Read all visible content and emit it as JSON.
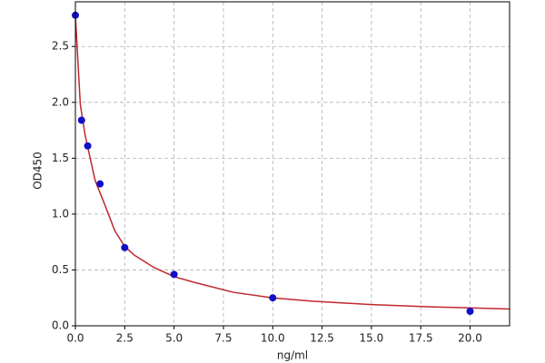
{
  "chart_data": {
    "type": "scatter",
    "x_label": "ng/ml",
    "y_label": "OD450",
    "xlim": [
      0,
      22
    ],
    "ylim": [
      0,
      2.9
    ],
    "xticks": [
      {
        "value": 0,
        "label": "0.0"
      },
      {
        "value": 2.5,
        "label": "2.5"
      },
      {
        "value": 5,
        "label": "5.0"
      },
      {
        "value": 7.5,
        "label": "7.5"
      },
      {
        "value": 10,
        "label": "10.0"
      },
      {
        "value": 12.5,
        "label": "12.5"
      },
      {
        "value": 15,
        "label": "15.0"
      },
      {
        "value": 17.5,
        "label": "17.5"
      },
      {
        "value": 20,
        "label": "20.0"
      }
    ],
    "yticks": [
      {
        "value": 0,
        "label": "0.0"
      },
      {
        "value": 0.5,
        "label": "0.5"
      },
      {
        "value": 1,
        "label": "1.0"
      },
      {
        "value": 1.5,
        "label": "1.5"
      },
      {
        "value": 2,
        "label": "2.0"
      },
      {
        "value": 2.5,
        "label": "2.5"
      }
    ],
    "grid": true,
    "series": [
      {
        "type": "line",
        "color": "#c0282d",
        "x": [
          0,
          0.25,
          0.5,
          0.75,
          1,
          1.5,
          2,
          2.5,
          3,
          4,
          5,
          6,
          8,
          10,
          12,
          15,
          18,
          22
        ],
        "values": [
          2.78,
          1.98,
          1.7,
          1.5,
          1.3,
          1.08,
          0.85,
          0.71,
          0.63,
          0.52,
          0.44,
          0.39,
          0.3,
          0.25,
          0.22,
          0.19,
          0.17,
          0.15
        ]
      },
      {
        "type": "scatter",
        "color": "#1010c8",
        "x": [
          0,
          0.3125,
          0.625,
          1.25,
          2.5,
          5,
          10,
          20
        ],
        "values": [
          2.78,
          1.84,
          1.61,
          1.27,
          0.7,
          0.46,
          0.25,
          0.13
        ]
      }
    ]
  }
}
